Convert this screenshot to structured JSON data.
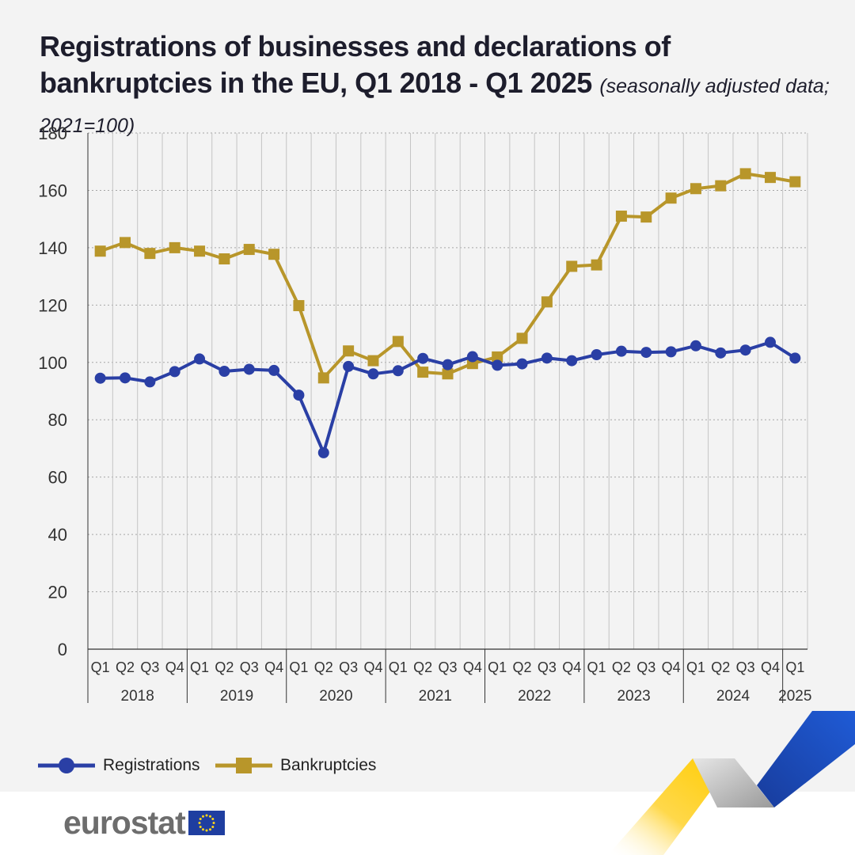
{
  "title": {
    "main": "Registrations of businesses and declarations of bankruptcies in the EU, Q1 2018 - Q1 2025",
    "subtitle": "(seasonally adjusted data; 2021=100)"
  },
  "colors": {
    "registrations": "#2a3fa5",
    "bankruptcies": "#b8962a",
    "grid": "#a6a6a6",
    "background": "#f3f3f3"
  },
  "legend": {
    "registrations_label": "Registrations",
    "bankruptcies_label": "Bankruptcies"
  },
  "logo": {
    "text": "eurostat",
    "flag_icon": "eu-flag-icon"
  },
  "chart_data": {
    "type": "line",
    "title": "Registrations of businesses and declarations of bankruptcies in the EU, Q1 2018 - Q1 2025",
    "subtitle": "(seasonally adjusted data; 2021=100)",
    "xlabel": "",
    "ylabel": "",
    "ylim": [
      0,
      180
    ],
    "yticks": [
      0,
      20,
      40,
      60,
      80,
      100,
      120,
      140,
      160,
      180
    ],
    "grid": true,
    "legend_position": "bottom-left",
    "quarters": [
      "Q1",
      "Q2",
      "Q3",
      "Q4",
      "Q1",
      "Q2",
      "Q3",
      "Q4",
      "Q1",
      "Q2",
      "Q3",
      "Q4",
      "Q1",
      "Q2",
      "Q3",
      "Q4",
      "Q1",
      "Q2",
      "Q3",
      "Q4",
      "Q1",
      "Q2",
      "Q3",
      "Q4",
      "Q1",
      "Q2",
      "Q3",
      "Q4",
      "Q1"
    ],
    "years": [
      {
        "label": "2018",
        "quarters": 4
      },
      {
        "label": "2019",
        "quarters": 4
      },
      {
        "label": "2020",
        "quarters": 4
      },
      {
        "label": "2021",
        "quarters": 4
      },
      {
        "label": "2022",
        "quarters": 4
      },
      {
        "label": "2023",
        "quarters": 4
      },
      {
        "label": "2024",
        "quarters": 4
      },
      {
        "label": "2025",
        "quarters": 1
      }
    ],
    "series": [
      {
        "name": "Registrations",
        "marker": "circle",
        "values": [
          94.5,
          94.6,
          93.2,
          96.8,
          101.2,
          96.9,
          97.6,
          97.2,
          88.6,
          68.5,
          98.6,
          96.0,
          97.1,
          101.4,
          99.2,
          102.0,
          99.0,
          99.5,
          101.5,
          100.6,
          102.7,
          103.9,
          103.5,
          103.7,
          105.8,
          103.3,
          104.3,
          107.0,
          101.5
        ]
      },
      {
        "name": "Bankruptcies",
        "marker": "square",
        "values": [
          138.8,
          141.8,
          138.0,
          140.0,
          138.8,
          136.1,
          139.4,
          137.7,
          119.8,
          94.6,
          104.0,
          100.6,
          107.3,
          96.6,
          96.0,
          99.6,
          101.9,
          108.4,
          121.1,
          133.5,
          134.0,
          151.0,
          150.7,
          157.3,
          160.6,
          161.6,
          165.8,
          164.5,
          163.0
        ]
      }
    ]
  }
}
